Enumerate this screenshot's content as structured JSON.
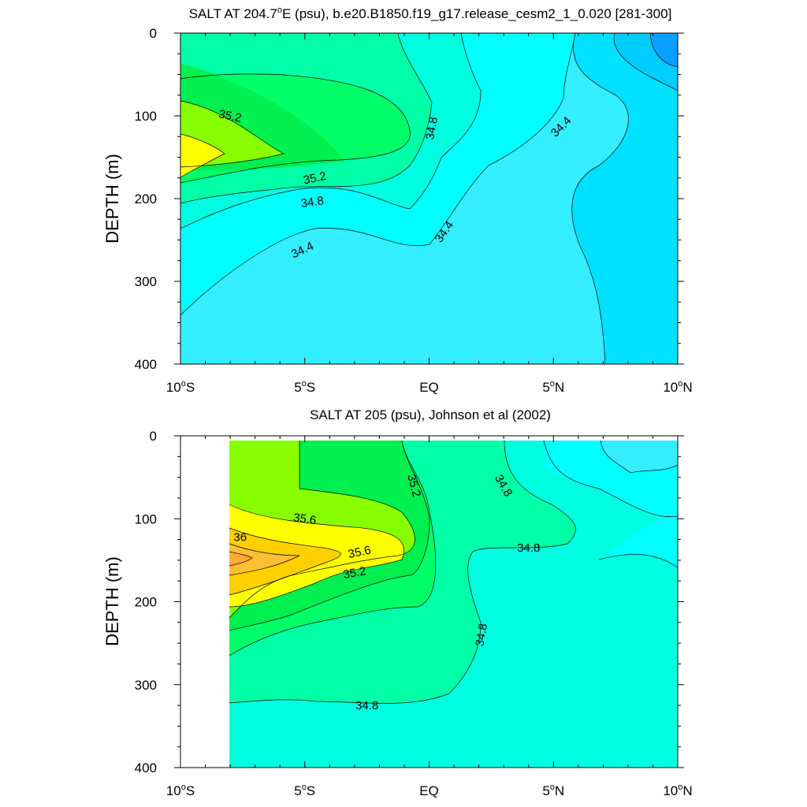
{
  "chart_data": [
    {
      "type": "contour",
      "title": "SALT AT 204.7°E (psu), b.e20.B1850.f19_g17.release_cesm2_1_0.020 [281-300]",
      "title_parts": {
        "pre": "SALT AT 204.7",
        "sup": "o",
        "post": "E (psu), b.e20.B1850.f19_g17.release_cesm2_1_0.020 [281-300]"
      },
      "ylabel": "DEPTH (m)",
      "xlabel": "",
      "xlim": [
        -10,
        10
      ],
      "ylim": [
        0,
        400
      ],
      "y_inverted": true,
      "xticks": [
        {
          "value": -10,
          "num": "10",
          "sup": "o",
          "suffix": "S"
        },
        {
          "value": -5,
          "num": "5",
          "sup": "o",
          "suffix": "S"
        },
        {
          "value": 0,
          "num": "EQ",
          "sup": "",
          "suffix": ""
        },
        {
          "value": 5,
          "num": "5",
          "sup": "o",
          "suffix": "N"
        },
        {
          "value": 10,
          "num": "10",
          "sup": "o",
          "suffix": "N"
        }
      ],
      "yticks": [
        0,
        100,
        200,
        300,
        400
      ],
      "contour_labels": [
        {
          "text": "35.2",
          "x": -8.0,
          "y": 100,
          "angle": 12
        },
        {
          "text": "35.2",
          "x": -4.6,
          "y": 175,
          "angle": -12
        },
        {
          "text": "34.8",
          "x": -4.7,
          "y": 204,
          "angle": -8
        },
        {
          "text": "34.4",
          "x": -5.1,
          "y": 262,
          "angle": -25
        },
        {
          "text": "34.8",
          "x": 0.1,
          "y": 115,
          "angle": -80
        },
        {
          "text": "34.4",
          "x": 0.6,
          "y": 240,
          "angle": -55
        },
        {
          "text": "34.4",
          "x": 5.3,
          "y": 113,
          "angle": -45
        }
      ]
    },
    {
      "type": "contour",
      "title": "SALT AT 205 (psu), Johnson et al (2002)",
      "ylabel": "DEPTH (m)",
      "xlabel": "",
      "xlim": [
        -10,
        10
      ],
      "ylim": [
        0,
        400
      ],
      "y_inverted": true,
      "xticks": [
        {
          "value": -10,
          "num": "10",
          "sup": "o",
          "suffix": "S"
        },
        {
          "value": -5,
          "num": "5",
          "sup": "o",
          "suffix": "S"
        },
        {
          "value": 0,
          "num": "EQ",
          "sup": "",
          "suffix": ""
        },
        {
          "value": 5,
          "num": "5",
          "sup": "o",
          "suffix": "N"
        },
        {
          "value": 10,
          "num": "10",
          "sup": "o",
          "suffix": "N"
        }
      ],
      "yticks": [
        0,
        100,
        200,
        300,
        400
      ],
      "data_extent_x": [
        -8,
        10
      ],
      "contour_labels": [
        {
          "text": "35.6",
          "x": -5.0,
          "y": 100,
          "angle": 8
        },
        {
          "text": "36",
          "x": -7.6,
          "y": 122,
          "angle": 0
        },
        {
          "text": "35.6",
          "x": -2.8,
          "y": 140,
          "angle": -12
        },
        {
          "text": "35.2",
          "x": -3.0,
          "y": 165,
          "angle": -10
        },
        {
          "text": "35.2",
          "x": -0.6,
          "y": 60,
          "angle": 75
        },
        {
          "text": "34.8",
          "x": 3.0,
          "y": 60,
          "angle": 60
        },
        {
          "text": "34.8",
          "x": 4.0,
          "y": 135,
          "angle": 0
        },
        {
          "text": "34.8",
          "x": 2.1,
          "y": 240,
          "angle": -80
        },
        {
          "text": "34.8",
          "x": -2.5,
          "y": 325,
          "angle": 0
        }
      ]
    }
  ]
}
